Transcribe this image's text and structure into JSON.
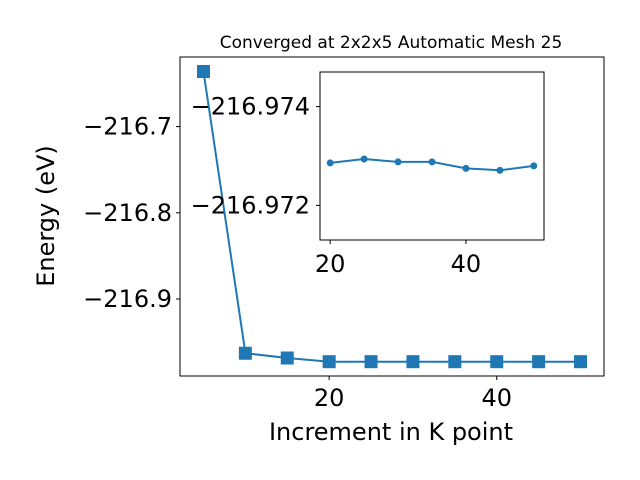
{
  "chart_data": [
    {
      "type": "line",
      "title": "Converged at 2x2x5 Automatic Mesh 25",
      "xlabel": "Increment in K point",
      "ylabel": "Energy (eV)",
      "xlim": [
        2.2,
        52.8
      ],
      "ylim": [
        -216.9893,
        -216.6193
      ],
      "xticks": [
        20,
        40
      ],
      "xtick_labels": [
        "20",
        "40"
      ],
      "yticks": [
        -216.7,
        -216.8,
        -216.9
      ],
      "ytick_labels": [
        "−216.7",
        "−216.8",
        "−216.9"
      ],
      "marker": "square",
      "color": "#1f77b4",
      "series": [
        {
          "x": [
            5,
            10,
            15,
            20,
            25,
            30,
            35,
            40,
            45,
            50
          ],
          "values": [
            -216.6361,
            -216.9629,
            -216.9684,
            -216.9727,
            -216.9727,
            -216.9727,
            -216.9727,
            -216.9727,
            -216.9727,
            -216.9727
          ]
        }
      ]
    },
    {
      "type": "line",
      "title": "",
      "inset": true,
      "xlim": [
        18.5,
        51.5
      ],
      "ylim": [
        -216.9713,
        -216.9747
      ],
      "xticks": [
        20,
        40
      ],
      "xtick_labels": [
        "20",
        "40"
      ],
      "yticks": [
        -216.974,
        -216.972
      ],
      "ytick_labels": [
        "−216.974",
        "−216.972"
      ],
      "marker": "circle",
      "color": "#1f77b4",
      "series": [
        {
          "x": [
            20,
            25,
            30,
            35,
            40,
            45,
            50
          ],
          "values": [
            -216.97286,
            -216.97294,
            -216.97288,
            -216.97288,
            -216.97275,
            -216.97271,
            -216.9728
          ]
        }
      ]
    }
  ]
}
